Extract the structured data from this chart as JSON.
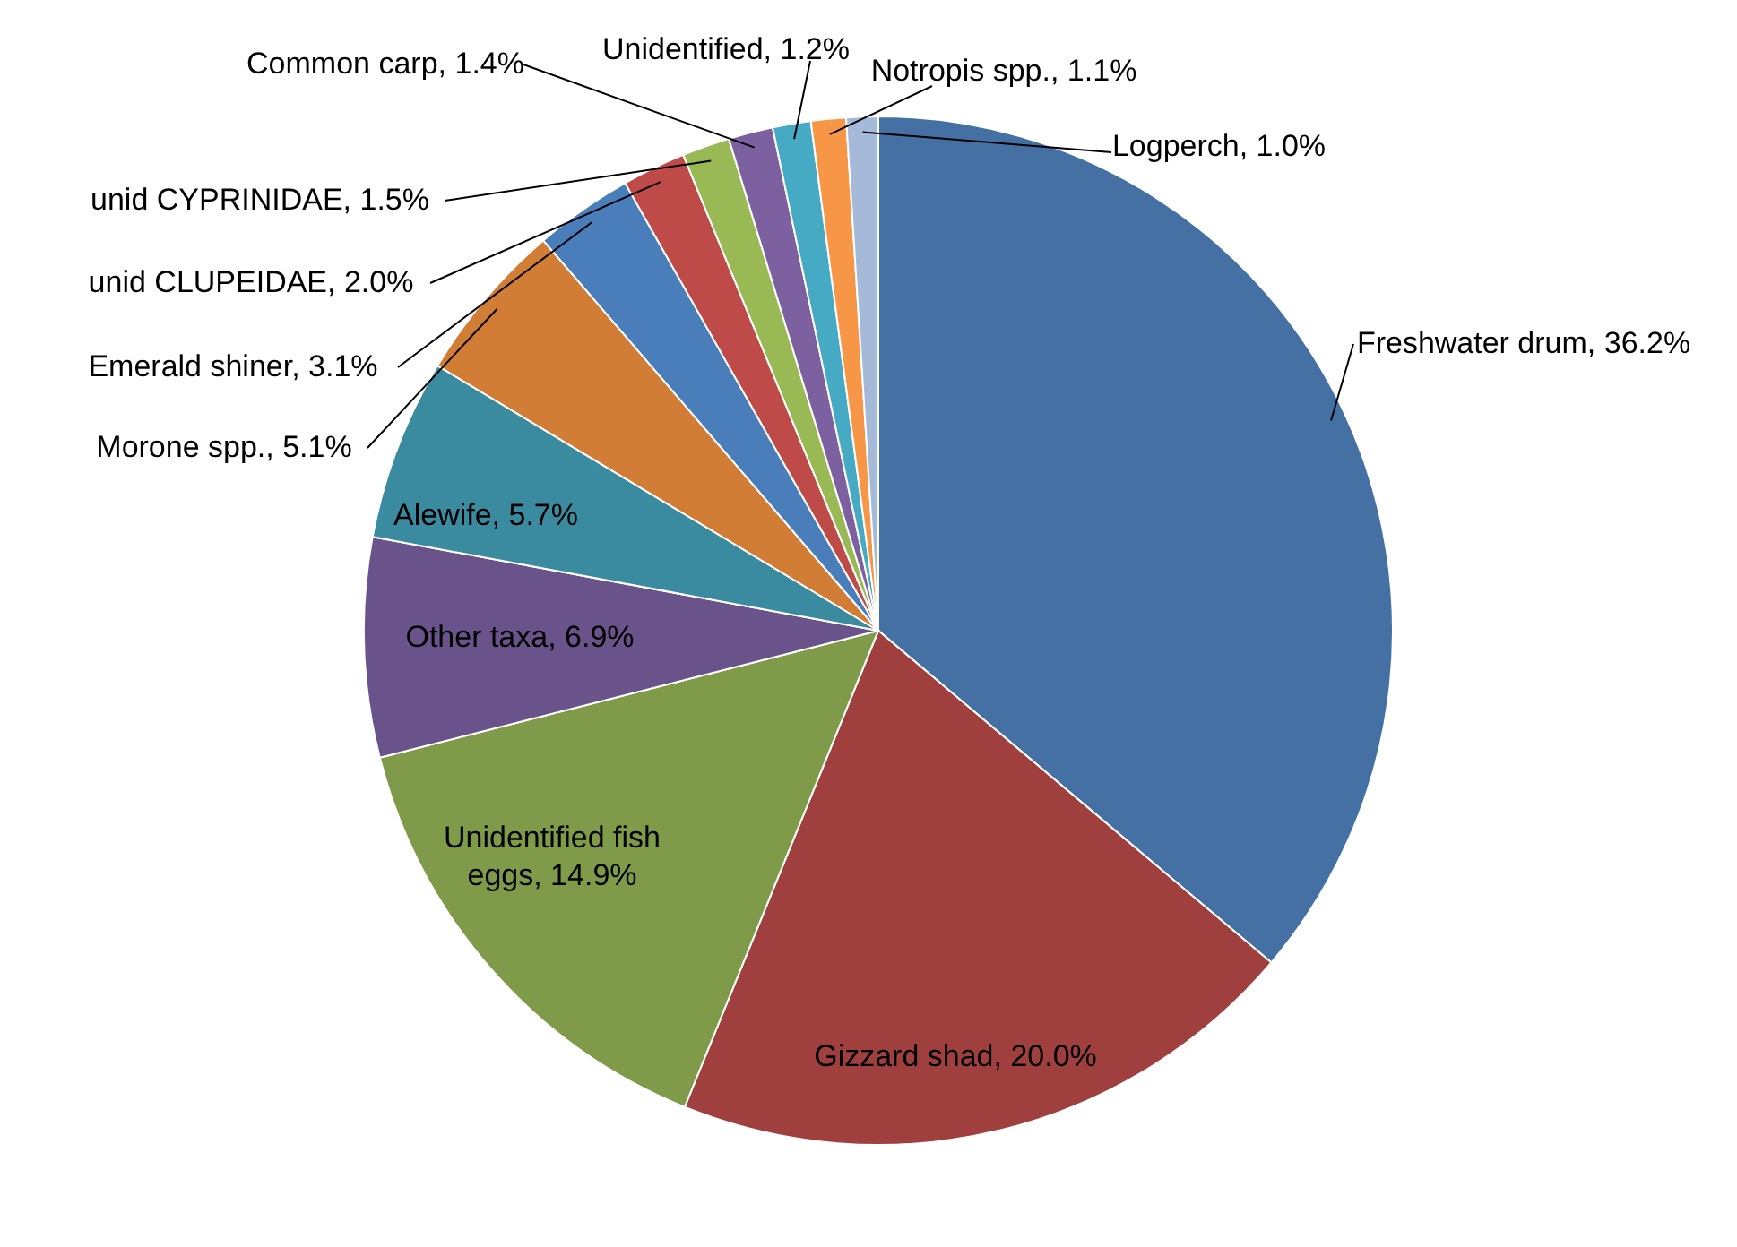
{
  "chart_data": {
    "type": "pie",
    "categories": [
      "Freshwater drum",
      "Gizzard shad",
      "Unidentified fish eggs",
      "Other taxa",
      "Alewife",
      "Morone spp.",
      "Emerald shiner",
      "unid CLUPEIDAE",
      "unid CYPRINIDAE",
      "Common carp",
      "Unidentified",
      "Notropis spp.",
      "Logperch"
    ],
    "values": [
      36.2,
      20.0,
      14.9,
      6.9,
      5.7,
      5.1,
      3.1,
      2.0,
      1.5,
      1.4,
      1.2,
      1.1,
      1.0
    ],
    "value_labels": [
      "36.2%",
      "20.0%",
      "14.9%",
      "6.9%",
      "5.7%",
      "5.1%",
      "3.1%",
      "2.0%",
      "1.5%",
      "1.4%",
      "1.2%",
      "1.1%",
      "1.0%"
    ],
    "colors": [
      "#4470a4",
      "#a0403e",
      "#7f9a48",
      "#69538a",
      "#3b8ba0",
      "#d17d36",
      "#4a7ebb",
      "#be4b48",
      "#98b954",
      "#7d60a0",
      "#46aac5",
      "#f79646",
      "#a5b9d9"
    ]
  }
}
